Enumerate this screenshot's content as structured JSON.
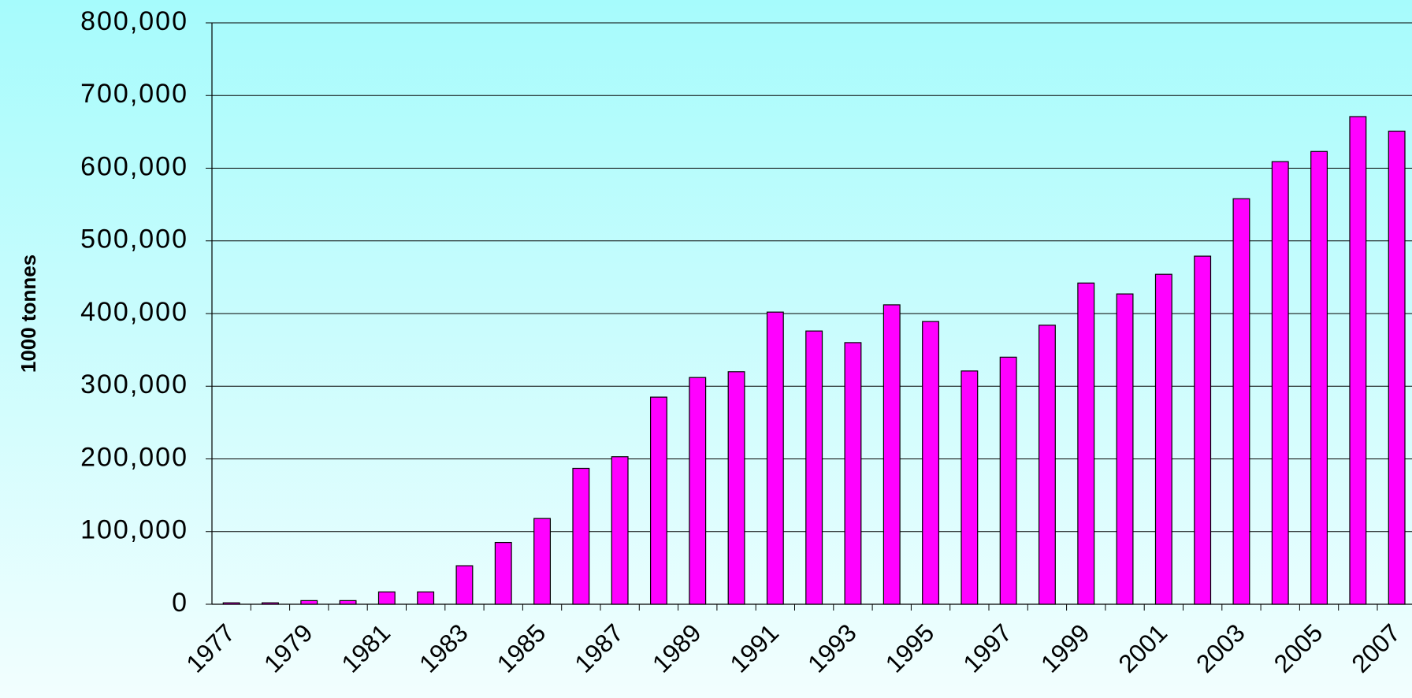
{
  "chart_data": {
    "type": "bar",
    "y_label": "1000 tonnes",
    "categories": [
      "1977",
      null,
      "1979",
      null,
      "1981",
      null,
      "1983",
      null,
      "1985",
      null,
      "1987",
      null,
      "1989",
      null,
      "1991",
      null,
      "1993",
      null,
      "1995",
      null,
      "1997",
      null,
      "1999",
      null,
      "2001",
      null,
      "2003",
      null,
      "2005",
      null,
      "2007"
    ],
    "values": [
      2000,
      2000,
      5000,
      5000,
      17000,
      17000,
      53000,
      85000,
      118000,
      187000,
      203000,
      285000,
      312000,
      320000,
      402000,
      376000,
      360000,
      412000,
      389000,
      321000,
      340000,
      384000,
      442000,
      427000,
      454000,
      479000,
      558000,
      609000,
      623000,
      671000,
      651000
    ],
    "color": "#ff00ff",
    "ylim": [
      0,
      800000
    ],
    "yticks": [
      0,
      {
        "value": 100000,
        "label": "100,000"
      },
      {
        "value": 200000,
        "label": "200,000"
      },
      {
        "value": 300000,
        "label": "300,000"
      },
      {
        "value": 400000,
        "label": "400,000"
      },
      {
        "value": 500000,
        "label": "500,000"
      },
      {
        "value": 600000,
        "label": "600,000"
      },
      {
        "value": 700000,
        "label": "700,000"
      },
      {
        "value": 800000,
        "label": "800,000"
      }
    ],
    "grid": true
  }
}
